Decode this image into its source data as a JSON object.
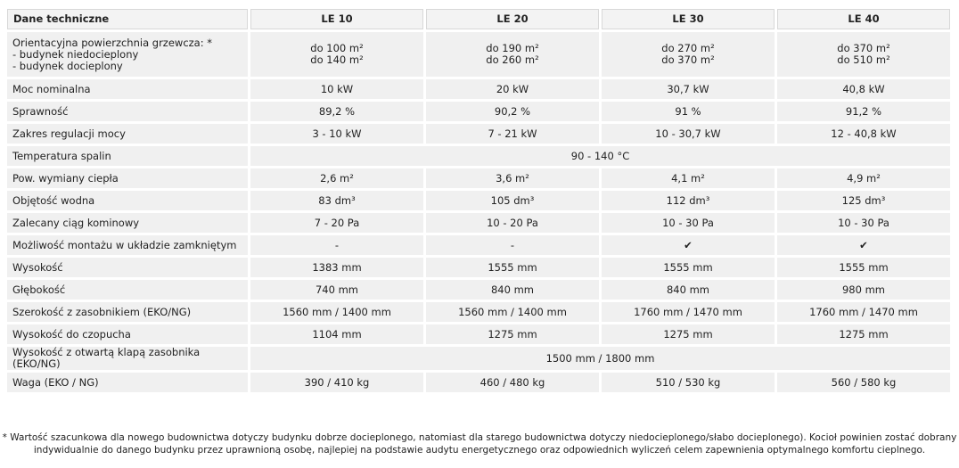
{
  "table": {
    "header": [
      "Dane techniczne",
      "LE 10",
      "LE 20",
      "LE 30",
      "LE 40"
    ],
    "rows": [
      {
        "label": [
          "Orientacyjna powierzchnia grzewcza: *",
          "- budynek niedocieplony",
          "- budynek docieplony"
        ],
        "values": [
          [
            "do 100 m²",
            "do 140 m²"
          ],
          [
            "do 190 m²",
            "do 260 m²"
          ],
          [
            "do 270 m²",
            "do 370 m²"
          ],
          [
            "do 370 m²",
            "do 510 m²"
          ]
        ]
      },
      {
        "label": "Moc nominalna",
        "values": [
          "10 kW",
          "20 kW",
          "30,7 kW",
          "40,8 kW"
        ]
      },
      {
        "label": "Sprawność",
        "values": [
          "89,2 %",
          "90,2 %",
          "91 %",
          "91,2 %"
        ]
      },
      {
        "label": "Zakres regulacji mocy",
        "values": [
          "3 - 10 kW",
          "7 - 21 kW",
          "10 - 30,7 kW",
          "12 - 40,8 kW"
        ]
      },
      {
        "label": "Temperatura spalin",
        "values": [
          "90 - 140 °C"
        ]
      },
      {
        "label": "Pow. wymiany ciepła",
        "values": [
          "2,6 m²",
          "3,6 m²",
          "4,1 m²",
          "4,9 m²"
        ]
      },
      {
        "label": "Objętość wodna",
        "values": [
          "83 dm³",
          "105 dm³",
          "112 dm³",
          "125 dm³"
        ]
      },
      {
        "label": "Zalecany ciąg kominowy",
        "values": [
          "7 - 20 Pa",
          "10 - 20 Pa",
          "10 - 30 Pa",
          "10 - 30 Pa"
        ]
      },
      {
        "label": "Możliwość montażu w układzie zamkniętym",
        "values": [
          "-",
          "-",
          "✔",
          "✔"
        ]
      },
      {
        "label": "Wysokość",
        "values": [
          "1383 mm",
          "1555 mm",
          "1555 mm",
          "1555 mm"
        ]
      },
      {
        "label": "Głębokość",
        "values": [
          "740 mm",
          "840 mm",
          "840 mm",
          "980 mm"
        ]
      },
      {
        "label": "Szerokość z zasobnikiem (EKO/NG)",
        "values": [
          "1560 mm / 1400 mm",
          "1560 mm / 1400 mm",
          "1760 mm / 1470 mm",
          "1760 mm / 1470 mm"
        ]
      },
      {
        "label": "Wysokość do czopucha",
        "values": [
          "1104 mm",
          "1275 mm",
          "1275 mm",
          "1275 mm"
        ]
      },
      {
        "label": "Wysokość z otwartą klapą zasobnika (EKO/NG)",
        "values": [
          "1500 mm / 1800 mm"
        ]
      },
      {
        "label": "Waga (EKO / NG)",
        "values": [
          "390 / 410 kg",
          "460 / 480 kg",
          "510 / 530 kg",
          "560 / 580 kg"
        ]
      }
    ]
  },
  "footnote": [
    "* Wartość szacunkowa dla nowego budownictwa dotyczy budynku dobrze docieplonego, natomiast dla starego budownictwa dotyczy niedocieplonego/słabo docieplonego). Kocioł powinien zostać dobrany",
    "indywidualnie do danego budynku przez uprawnioną osobę, najlepiej na podstawie audytu energetycznego oraz odpowiednich wyliczeń celem zapewnienia optymalnego komfortu cieplnego."
  ]
}
